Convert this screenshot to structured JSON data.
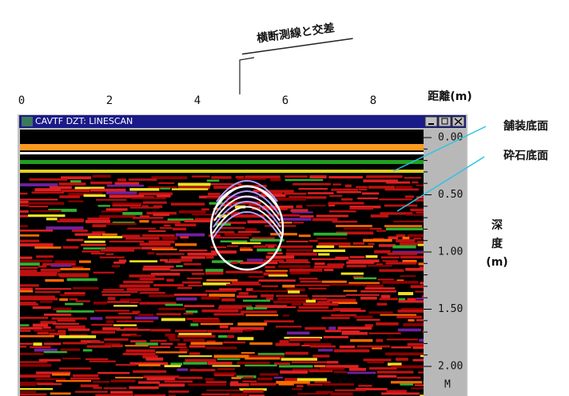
{
  "annotations": {
    "crossing": "横断測線と交差",
    "pavement_bottom": "舗装底面",
    "gravel_bottom": "砕石底面"
  },
  "x_axis": {
    "label": "距離(m)",
    "ticks": [
      "0",
      "2",
      "4",
      "6",
      "8"
    ]
  },
  "window": {
    "title": "CAVTF DZT: LINESCAN"
  },
  "y_axis": {
    "label": [
      "深",
      "度",
      "(m)"
    ],
    "ticks": [
      "0.00",
      "0.50",
      "1.00",
      "1.50",
      "2.00"
    ],
    "unit": "M"
  }
}
